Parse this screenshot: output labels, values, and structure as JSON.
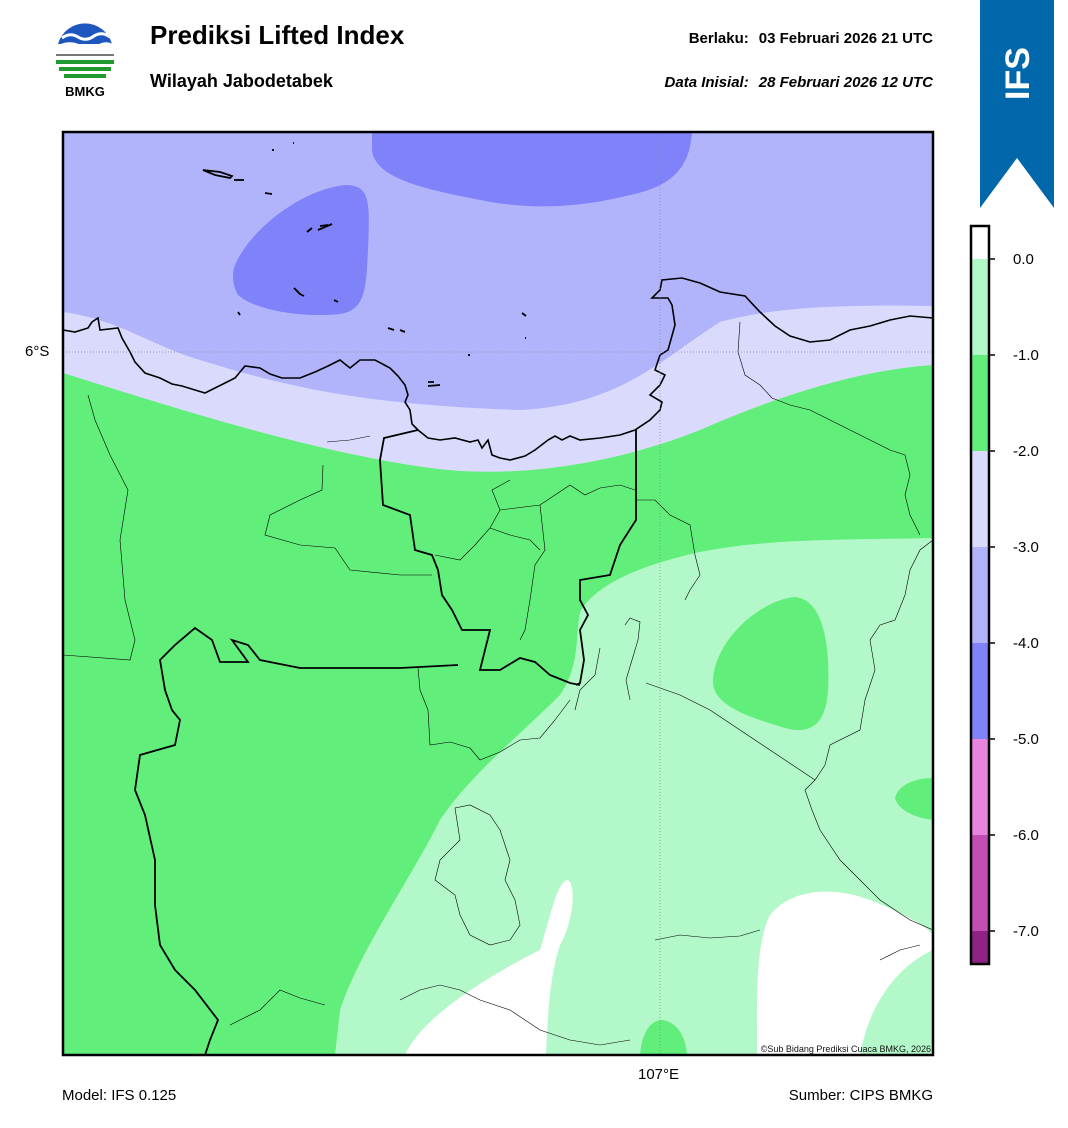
{
  "header": {
    "title": "Prediksi Lifted Index",
    "subtitle": "Wilayah Jabodetabek",
    "valid_label": "Berlaku:",
    "valid_value": "03 Februari 2026 21 UTC",
    "init_label": "Data Inisial:",
    "init_value": "28 Februari 2026 12 UTC"
  },
  "logo": {
    "icon": "bmkg-logo-icon",
    "text": "BMKG"
  },
  "badge": {
    "text": "IFS",
    "color": "#0068aa"
  },
  "map": {
    "lat_label": "6°S",
    "lon_label": "107°E",
    "credit": "©Sub Bidang Prediksi Cuaca BMKG, 2026"
  },
  "colorbar": {
    "ticks": [
      "0.0",
      "-1.0",
      "-2.0",
      "-3.0",
      "-4.0",
      "-5.0",
      "-6.0",
      "-7.0"
    ],
    "colors": {
      "gt0": "#ffffff",
      "0_to_-1": "#b3f8c8",
      "-1_to_-2": "#62ee7a",
      "-2_to_-3": "#dadbfc",
      "-3_to_-4": "#b2b4fb",
      "-4_to_-5": "#7f82f9",
      "-5_to_-6": "#e884de",
      "-6_to_-7": "#c24eb5",
      "lt-7": "#8e2285"
    }
  },
  "footer": {
    "model": "Model: IFS 0.125",
    "source": "Sumber: CIPS BMKG"
  }
}
